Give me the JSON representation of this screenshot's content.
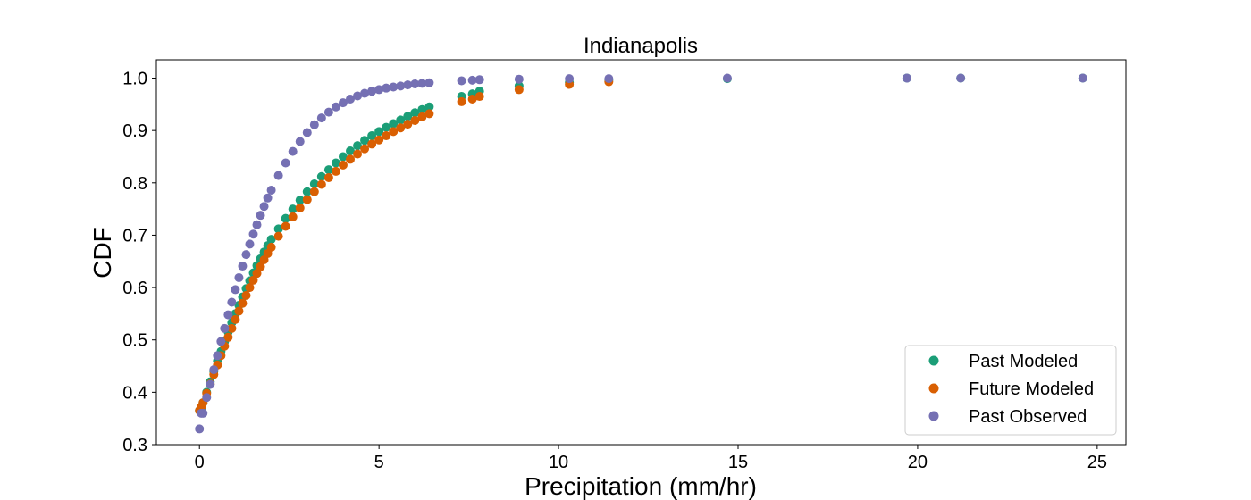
{
  "chart_data": {
    "type": "scatter",
    "title": "Indianapolis",
    "xlabel": "Precipitation (mm/hr)",
    "ylabel": "CDF",
    "xlim": [
      -1.2,
      25.8
    ],
    "ylim": [
      0.3,
      1.035
    ],
    "xticks": [
      0,
      5,
      10,
      15,
      20,
      25
    ],
    "yticks": [
      0.3,
      0.4,
      0.5,
      0.6,
      0.7,
      0.8,
      0.9,
      1.0
    ],
    "xtick_labels": [
      "0",
      "5",
      "10",
      "15",
      "20",
      "25"
    ],
    "ytick_labels": [
      "0.3",
      "0.4",
      "0.5",
      "0.6",
      "0.7",
      "0.8",
      "0.9",
      "1.0"
    ],
    "grid": false,
    "legend": "lower-right",
    "series": [
      {
        "name": "Past Modeled",
        "color": "#1b9e77",
        "x": [
          0.0,
          0.05,
          0.1,
          0.2,
          0.3,
          0.4,
          0.5,
          0.6,
          0.7,
          0.8,
          0.9,
          1.0,
          1.1,
          1.2,
          1.3,
          1.4,
          1.5,
          1.6,
          1.7,
          1.8,
          1.9,
          2.0,
          2.2,
          2.4,
          2.6,
          2.8,
          3.0,
          3.2,
          3.4,
          3.6,
          3.8,
          4.0,
          4.2,
          4.4,
          4.6,
          4.8,
          5.0,
          5.2,
          5.4,
          5.6,
          5.8,
          6.0,
          6.2,
          6.4,
          7.3,
          7.6,
          7.8,
          8.9,
          10.3,
          11.4,
          14.7,
          19.7,
          21.2,
          24.6
        ],
        "y": [
          0.365,
          0.37,
          0.38,
          0.4,
          0.42,
          0.44,
          0.46,
          0.478,
          0.497,
          0.515,
          0.533,
          0.55,
          0.566,
          0.582,
          0.598,
          0.613,
          0.628,
          0.642,
          0.655,
          0.668,
          0.68,
          0.692,
          0.712,
          0.732,
          0.75,
          0.767,
          0.783,
          0.798,
          0.812,
          0.825,
          0.838,
          0.85,
          0.861,
          0.871,
          0.881,
          0.89,
          0.898,
          0.906,
          0.913,
          0.92,
          0.927,
          0.934,
          0.94,
          0.945,
          0.965,
          0.97,
          0.975,
          0.985,
          0.992,
          0.996,
          0.999,
          1.0,
          1.0,
          1.0
        ]
      },
      {
        "name": "Future Modeled",
        "color": "#d95f02",
        "x": [
          0.0,
          0.05,
          0.1,
          0.2,
          0.3,
          0.4,
          0.5,
          0.6,
          0.7,
          0.8,
          0.9,
          1.0,
          1.1,
          1.2,
          1.3,
          1.4,
          1.5,
          1.6,
          1.7,
          1.8,
          1.9,
          2.0,
          2.2,
          2.4,
          2.6,
          2.8,
          3.0,
          3.2,
          3.4,
          3.6,
          3.8,
          4.0,
          4.2,
          4.4,
          4.6,
          4.8,
          5.0,
          5.2,
          5.4,
          5.6,
          5.8,
          6.0,
          6.2,
          6.4,
          7.3,
          7.6,
          7.8,
          8.9,
          10.3,
          11.4
        ],
        "y": [
          0.365,
          0.372,
          0.38,
          0.398,
          0.416,
          0.434,
          0.452,
          0.47,
          0.488,
          0.505,
          0.522,
          0.539,
          0.555,
          0.57,
          0.585,
          0.6,
          0.614,
          0.627,
          0.64,
          0.653,
          0.665,
          0.677,
          0.698,
          0.717,
          0.735,
          0.752,
          0.768,
          0.783,
          0.797,
          0.81,
          0.822,
          0.834,
          0.845,
          0.855,
          0.865,
          0.874,
          0.882,
          0.89,
          0.898,
          0.905,
          0.912,
          0.919,
          0.926,
          0.932,
          0.955,
          0.96,
          0.965,
          0.978,
          0.988,
          0.993
        ]
      },
      {
        "name": "Past Observed",
        "color": "#7570b3",
        "x": [
          0.0,
          0.05,
          0.1,
          0.2,
          0.3,
          0.4,
          0.5,
          0.6,
          0.7,
          0.8,
          0.9,
          1.0,
          1.1,
          1.2,
          1.3,
          1.4,
          1.5,
          1.6,
          1.7,
          1.8,
          1.9,
          2.0,
          2.2,
          2.4,
          2.6,
          2.8,
          3.0,
          3.2,
          3.4,
          3.6,
          3.8,
          4.0,
          4.2,
          4.4,
          4.6,
          4.8,
          5.0,
          5.2,
          5.4,
          5.6,
          5.8,
          6.0,
          6.2,
          6.4,
          7.3,
          7.6,
          7.8,
          8.9,
          10.3,
          11.4,
          14.7,
          19.7,
          21.2,
          24.6
        ],
        "y": [
          0.33,
          0.36,
          0.36,
          0.39,
          0.415,
          0.443,
          0.47,
          0.497,
          0.522,
          0.548,
          0.572,
          0.596,
          0.619,
          0.641,
          0.663,
          0.683,
          0.702,
          0.72,
          0.738,
          0.755,
          0.771,
          0.786,
          0.814,
          0.838,
          0.86,
          0.879,
          0.896,
          0.911,
          0.924,
          0.935,
          0.945,
          0.953,
          0.96,
          0.966,
          0.971,
          0.975,
          0.978,
          0.981,
          0.983,
          0.985,
          0.987,
          0.989,
          0.99,
          0.991,
          0.995,
          0.996,
          0.997,
          0.998,
          0.999,
          0.999,
          1.0,
          1.0,
          1.0,
          1.0
        ]
      }
    ]
  }
}
